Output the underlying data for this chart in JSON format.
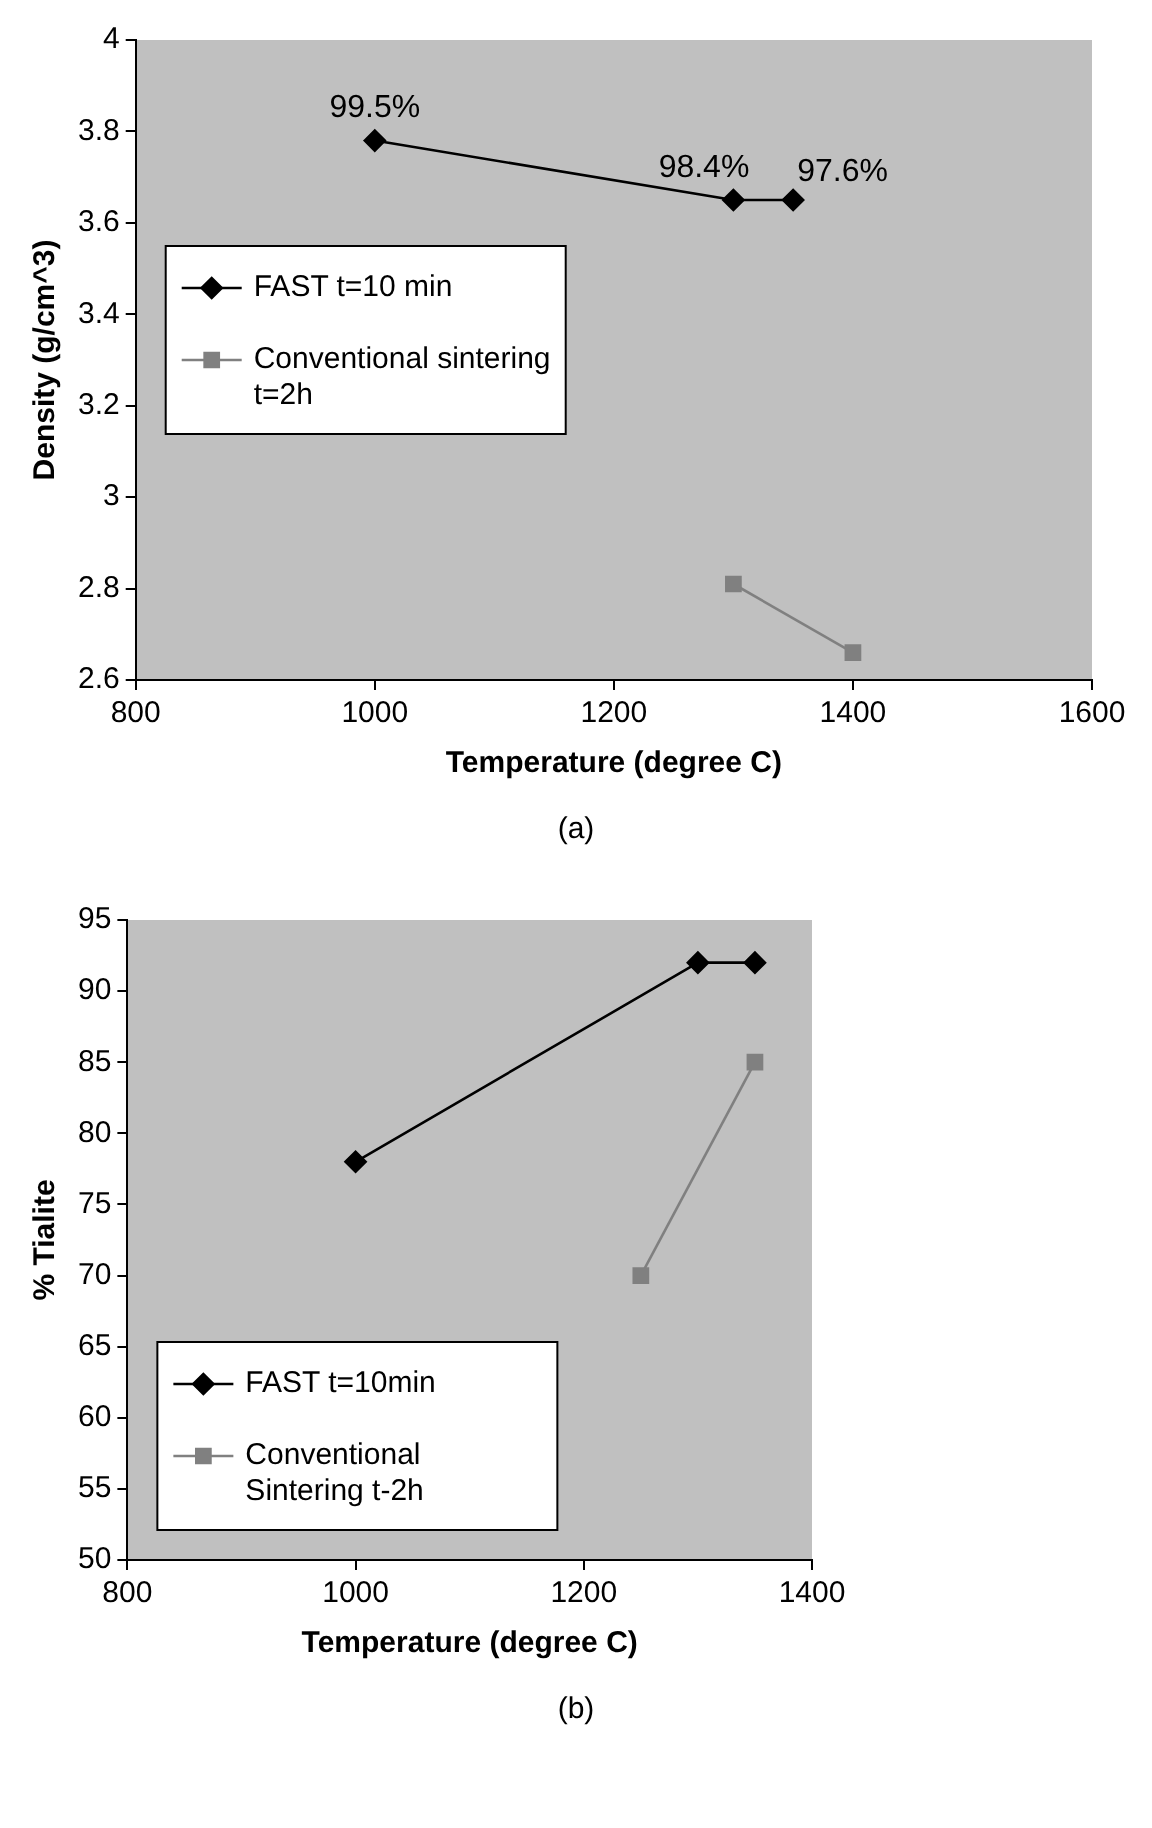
{
  "chart_data": [
    {
      "type": "line",
      "xlabel": "Temperature (degree C)",
      "ylabel": "Density (g/cm^3)",
      "xlim": [
        800,
        1600
      ],
      "xticks": [
        800,
        1000,
        1200,
        1400,
        1600
      ],
      "ylim": [
        2.6,
        4
      ],
      "yticks": [
        2.6,
        2.8,
        3,
        3.2,
        3.4,
        3.6,
        3.8,
        4
      ],
      "grid": false,
      "legend": "left",
      "series": [
        {
          "name": "FAST t=10 min",
          "color": "#000000",
          "marker": "diamond",
          "x": [
            1000,
            1300,
            1350
          ],
          "values": [
            3.78,
            3.65,
            3.65
          ]
        },
        {
          "name": "Conventional sintering t=2h",
          "color": "#808080",
          "marker": "square",
          "x": [
            1300,
            1400
          ],
          "values": [
            2.81,
            2.66
          ]
        }
      ],
      "annotations": [
        {
          "text": "99.5%",
          "x": 1000,
          "y": 3.78
        },
        {
          "text": "98.4%",
          "x": 1300,
          "y": 3.65
        },
        {
          "text": "97.6%",
          "x": 1350,
          "y": 3.65
        },
        "(a)"
      ]
    },
    {
      "type": "line",
      "xlabel": "Temperature (degree C)",
      "ylabel": "% Tialite",
      "xlim": [
        800,
        1400
      ],
      "xticks": [
        800,
        1000,
        1200,
        1400
      ],
      "ylim": [
        50,
        95
      ],
      "yticks": [
        50,
        55,
        60,
        65,
        70,
        75,
        80,
        85,
        90,
        95
      ],
      "grid": false,
      "legend": "bottom left",
      "series": [
        {
          "name": "FAST t=10min",
          "color": "#000000",
          "marker": "diamond",
          "x": [
            1000,
            1300,
            1350
          ],
          "values": [
            78,
            92,
            92
          ]
        },
        {
          "name": "Conventional Sintering t-2h",
          "color": "#808080",
          "marker": "square",
          "x": [
            1250,
            1350
          ],
          "values": [
            70,
            85
          ]
        }
      ],
      "annotations": [
        "(b)"
      ]
    }
  ]
}
